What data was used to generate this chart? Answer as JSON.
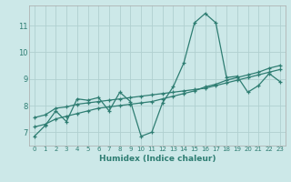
{
  "title": "",
  "xlabel": "Humidex (Indice chaleur)",
  "bg_color": "#cce8e8",
  "line_color": "#2e7d72",
  "grid_color": "#b0d0d0",
  "xlim": [
    -0.5,
    23.5
  ],
  "ylim": [
    6.5,
    11.75
  ],
  "yticks": [
    7,
    8,
    9,
    10,
    11
  ],
  "xticks": [
    0,
    1,
    2,
    3,
    4,
    5,
    6,
    7,
    8,
    9,
    10,
    11,
    12,
    13,
    14,
    15,
    16,
    17,
    18,
    19,
    20,
    21,
    22,
    23
  ],
  "line1_x": [
    0,
    1,
    2,
    3,
    4,
    5,
    6,
    7,
    8,
    9,
    10,
    11,
    12,
    13,
    14,
    15,
    16,
    17,
    18,
    19,
    20,
    21,
    22,
    23
  ],
  "line1_y": [
    6.85,
    7.25,
    7.8,
    7.4,
    8.25,
    8.2,
    8.3,
    7.8,
    8.5,
    8.15,
    6.85,
    7.0,
    8.1,
    8.7,
    9.6,
    11.1,
    11.45,
    11.1,
    9.05,
    9.1,
    8.5,
    8.75,
    9.2,
    8.9
  ],
  "line2_x": [
    0,
    1,
    2,
    3,
    4,
    5,
    6,
    7,
    8,
    9,
    10,
    11,
    12,
    13,
    14,
    15,
    16,
    17,
    18,
    19,
    20,
    21,
    22,
    23
  ],
  "line2_y": [
    7.55,
    7.65,
    7.9,
    7.95,
    8.05,
    8.1,
    8.15,
    8.2,
    8.25,
    8.3,
    8.35,
    8.4,
    8.45,
    8.5,
    8.55,
    8.6,
    8.65,
    8.75,
    8.85,
    8.95,
    9.05,
    9.15,
    9.25,
    9.35
  ],
  "line3_x": [
    0,
    1,
    2,
    3,
    4,
    5,
    6,
    7,
    8,
    9,
    10,
    11,
    12,
    13,
    14,
    15,
    16,
    17,
    18,
    19,
    20,
    21,
    22,
    23
  ],
  "line3_y": [
    7.2,
    7.3,
    7.5,
    7.6,
    7.7,
    7.8,
    7.9,
    7.95,
    8.0,
    8.05,
    8.1,
    8.15,
    8.25,
    8.35,
    8.45,
    8.55,
    8.7,
    8.8,
    8.95,
    9.05,
    9.15,
    9.25,
    9.4,
    9.5
  ]
}
